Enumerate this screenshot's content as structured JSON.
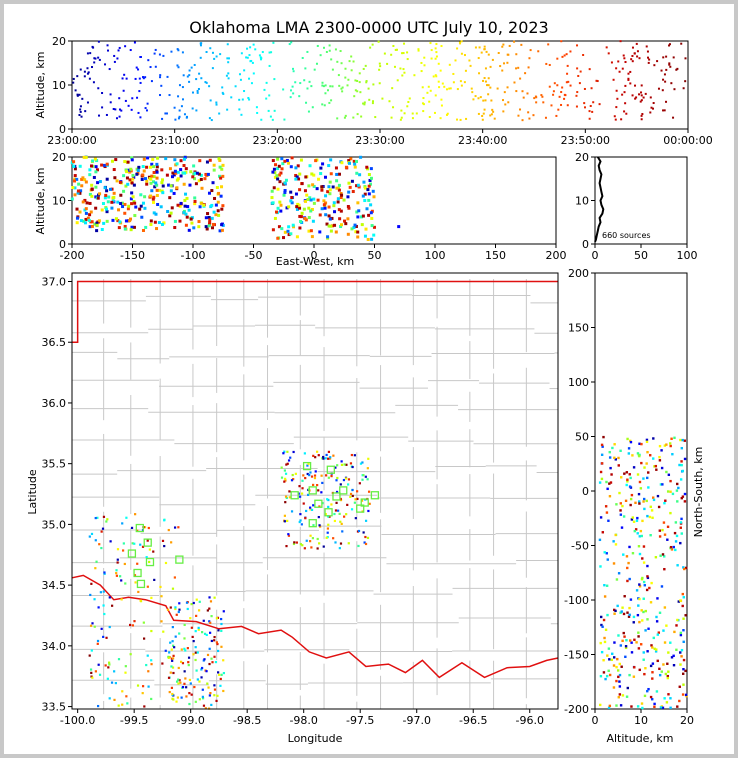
{
  "title": "Oklahoma LMA 2300-0000 UTC July 10, 2023",
  "histogram_annotation": "660 sources",
  "colors": {
    "boundary": "#e01010",
    "counties": "#c8c8c8",
    "stations": "#66ee44",
    "time_colormap": [
      "#000090",
      "#0000ff",
      "#00a0ff",
      "#00ffff",
      "#40ff80",
      "#c0ff00",
      "#ffff00",
      "#ffa000",
      "#ff4000",
      "#c00000",
      "#800000"
    ]
  },
  "chart_data": [
    {
      "id": "time-height",
      "type": "scatter",
      "ylabel": "Altitude, km",
      "xlim": [
        "23:00:00",
        "00:00:00"
      ],
      "ylim": [
        0,
        20
      ],
      "xticks": [
        "23:00:00",
        "23:10:00",
        "23:20:00",
        "23:30:00",
        "23:40:00",
        "23:50:00",
        "00:00:00"
      ],
      "yticks": [
        "0",
        "10",
        "20"
      ],
      "color_by": "time",
      "note": "Sources distributed over the whole hour at altitudes of about 2-20 km"
    },
    {
      "id": "ew-height",
      "type": "scatter",
      "xlabel": "East-West, km",
      "ylabel": "Altitude, km",
      "xlim": [
        -200,
        200
      ],
      "ylim": [
        0,
        20
      ],
      "xticks": [
        "-200",
        "-150",
        "-100",
        "-50",
        "0",
        "50",
        "100",
        "150",
        "200"
      ],
      "yticks": [
        "0",
        "10",
        "20"
      ],
      "clusters": [
        {
          "x_range": [
            -200,
            -140
          ],
          "alt_range": [
            3,
            20
          ]
        },
        {
          "x_range": [
            -140,
            -75
          ],
          "alt_range": [
            3,
            20
          ]
        },
        {
          "x_range": [
            -35,
            50
          ],
          "alt_range": [
            1,
            20
          ]
        }
      ]
    },
    {
      "id": "altitude-histogram",
      "type": "line",
      "xlim": [
        0,
        100
      ],
      "ylim": [
        0,
        20
      ],
      "xticks": [
        "0",
        "50",
        "100"
      ],
      "yticks": [
        "0",
        "10",
        "20"
      ],
      "total_sources": 660,
      "profile": [
        [
          0,
          0.5
        ],
        [
          1,
          1
        ],
        [
          2,
          2
        ],
        [
          3,
          3
        ],
        [
          4,
          4
        ],
        [
          6,
          5
        ],
        [
          5,
          6
        ],
        [
          8,
          7
        ],
        [
          9,
          8
        ],
        [
          7,
          9
        ],
        [
          6,
          10
        ],
        [
          8,
          11
        ],
        [
          7,
          12
        ],
        [
          6,
          13
        ],
        [
          5,
          14
        ],
        [
          6,
          15
        ],
        [
          7,
          16
        ],
        [
          5,
          17
        ],
        [
          4,
          18
        ],
        [
          6,
          19
        ],
        [
          3,
          20
        ]
      ]
    },
    {
      "id": "plan-view",
      "type": "scatter",
      "xlabel": "Longitude",
      "ylabel": "Latitude",
      "xlim": [
        -100.05,
        -95.75
      ],
      "ylim": [
        33.48,
        37.07
      ],
      "xticks": [
        "-100.0",
        "-99.5",
        "-99.0",
        "-98.5",
        "-98.0",
        "-97.5",
        "-97.0",
        "-96.5",
        "-96.0"
      ],
      "yticks": [
        "33.5",
        "34.0",
        "34.5",
        "35.0",
        "35.5",
        "36.0",
        "36.5",
        "37.0"
      ],
      "clusters": [
        {
          "lon": [
            -99.9,
            -99.1
          ],
          "lat": [
            33.5,
            35.1
          ]
        },
        {
          "lon": [
            -99.2,
            -98.7
          ],
          "lat": [
            33.48,
            34.4
          ]
        },
        {
          "lon": [
            -98.2,
            -97.4
          ],
          "lat": [
            34.8,
            35.6
          ]
        }
      ],
      "stations": [
        {
          "lon": -99.45,
          "lat": 34.97
        },
        {
          "lon": -99.38,
          "lat": 34.85
        },
        {
          "lon": -99.52,
          "lat": 34.76
        },
        {
          "lon": -99.36,
          "lat": 34.69
        },
        {
          "lon": -99.47,
          "lat": 34.6
        },
        {
          "lon": -99.44,
          "lat": 34.51
        },
        {
          "lon": -99.1,
          "lat": 34.71
        },
        {
          "lon": -97.97,
          "lat": 35.48
        },
        {
          "lon": -97.76,
          "lat": 35.45
        },
        {
          "lon": -98.08,
          "lat": 35.24
        },
        {
          "lon": -97.92,
          "lat": 35.28
        },
        {
          "lon": -97.87,
          "lat": 35.17
        },
        {
          "lon": -97.71,
          "lat": 35.23
        },
        {
          "lon": -97.65,
          "lat": 35.28
        },
        {
          "lon": -97.78,
          "lat": 35.1
        },
        {
          "lon": -97.92,
          "lat": 35.01
        },
        {
          "lon": -97.5,
          "lat": 35.13
        },
        {
          "lon": -97.46,
          "lat": 35.18
        },
        {
          "lon": -97.37,
          "lat": 35.24
        }
      ]
    },
    {
      "id": "ns-height",
      "type": "scatter",
      "xlabel": "Altitude, km",
      "ylabel": "North-South, km",
      "xlim": [
        0,
        20
      ],
      "ylim": [
        -200,
        200
      ],
      "xticks": [
        "0",
        "10",
        "20"
      ],
      "yticks": [
        "-200",
        "-150",
        "-100",
        "-50",
        "0",
        "50",
        "100",
        "150",
        "200"
      ]
    }
  ]
}
